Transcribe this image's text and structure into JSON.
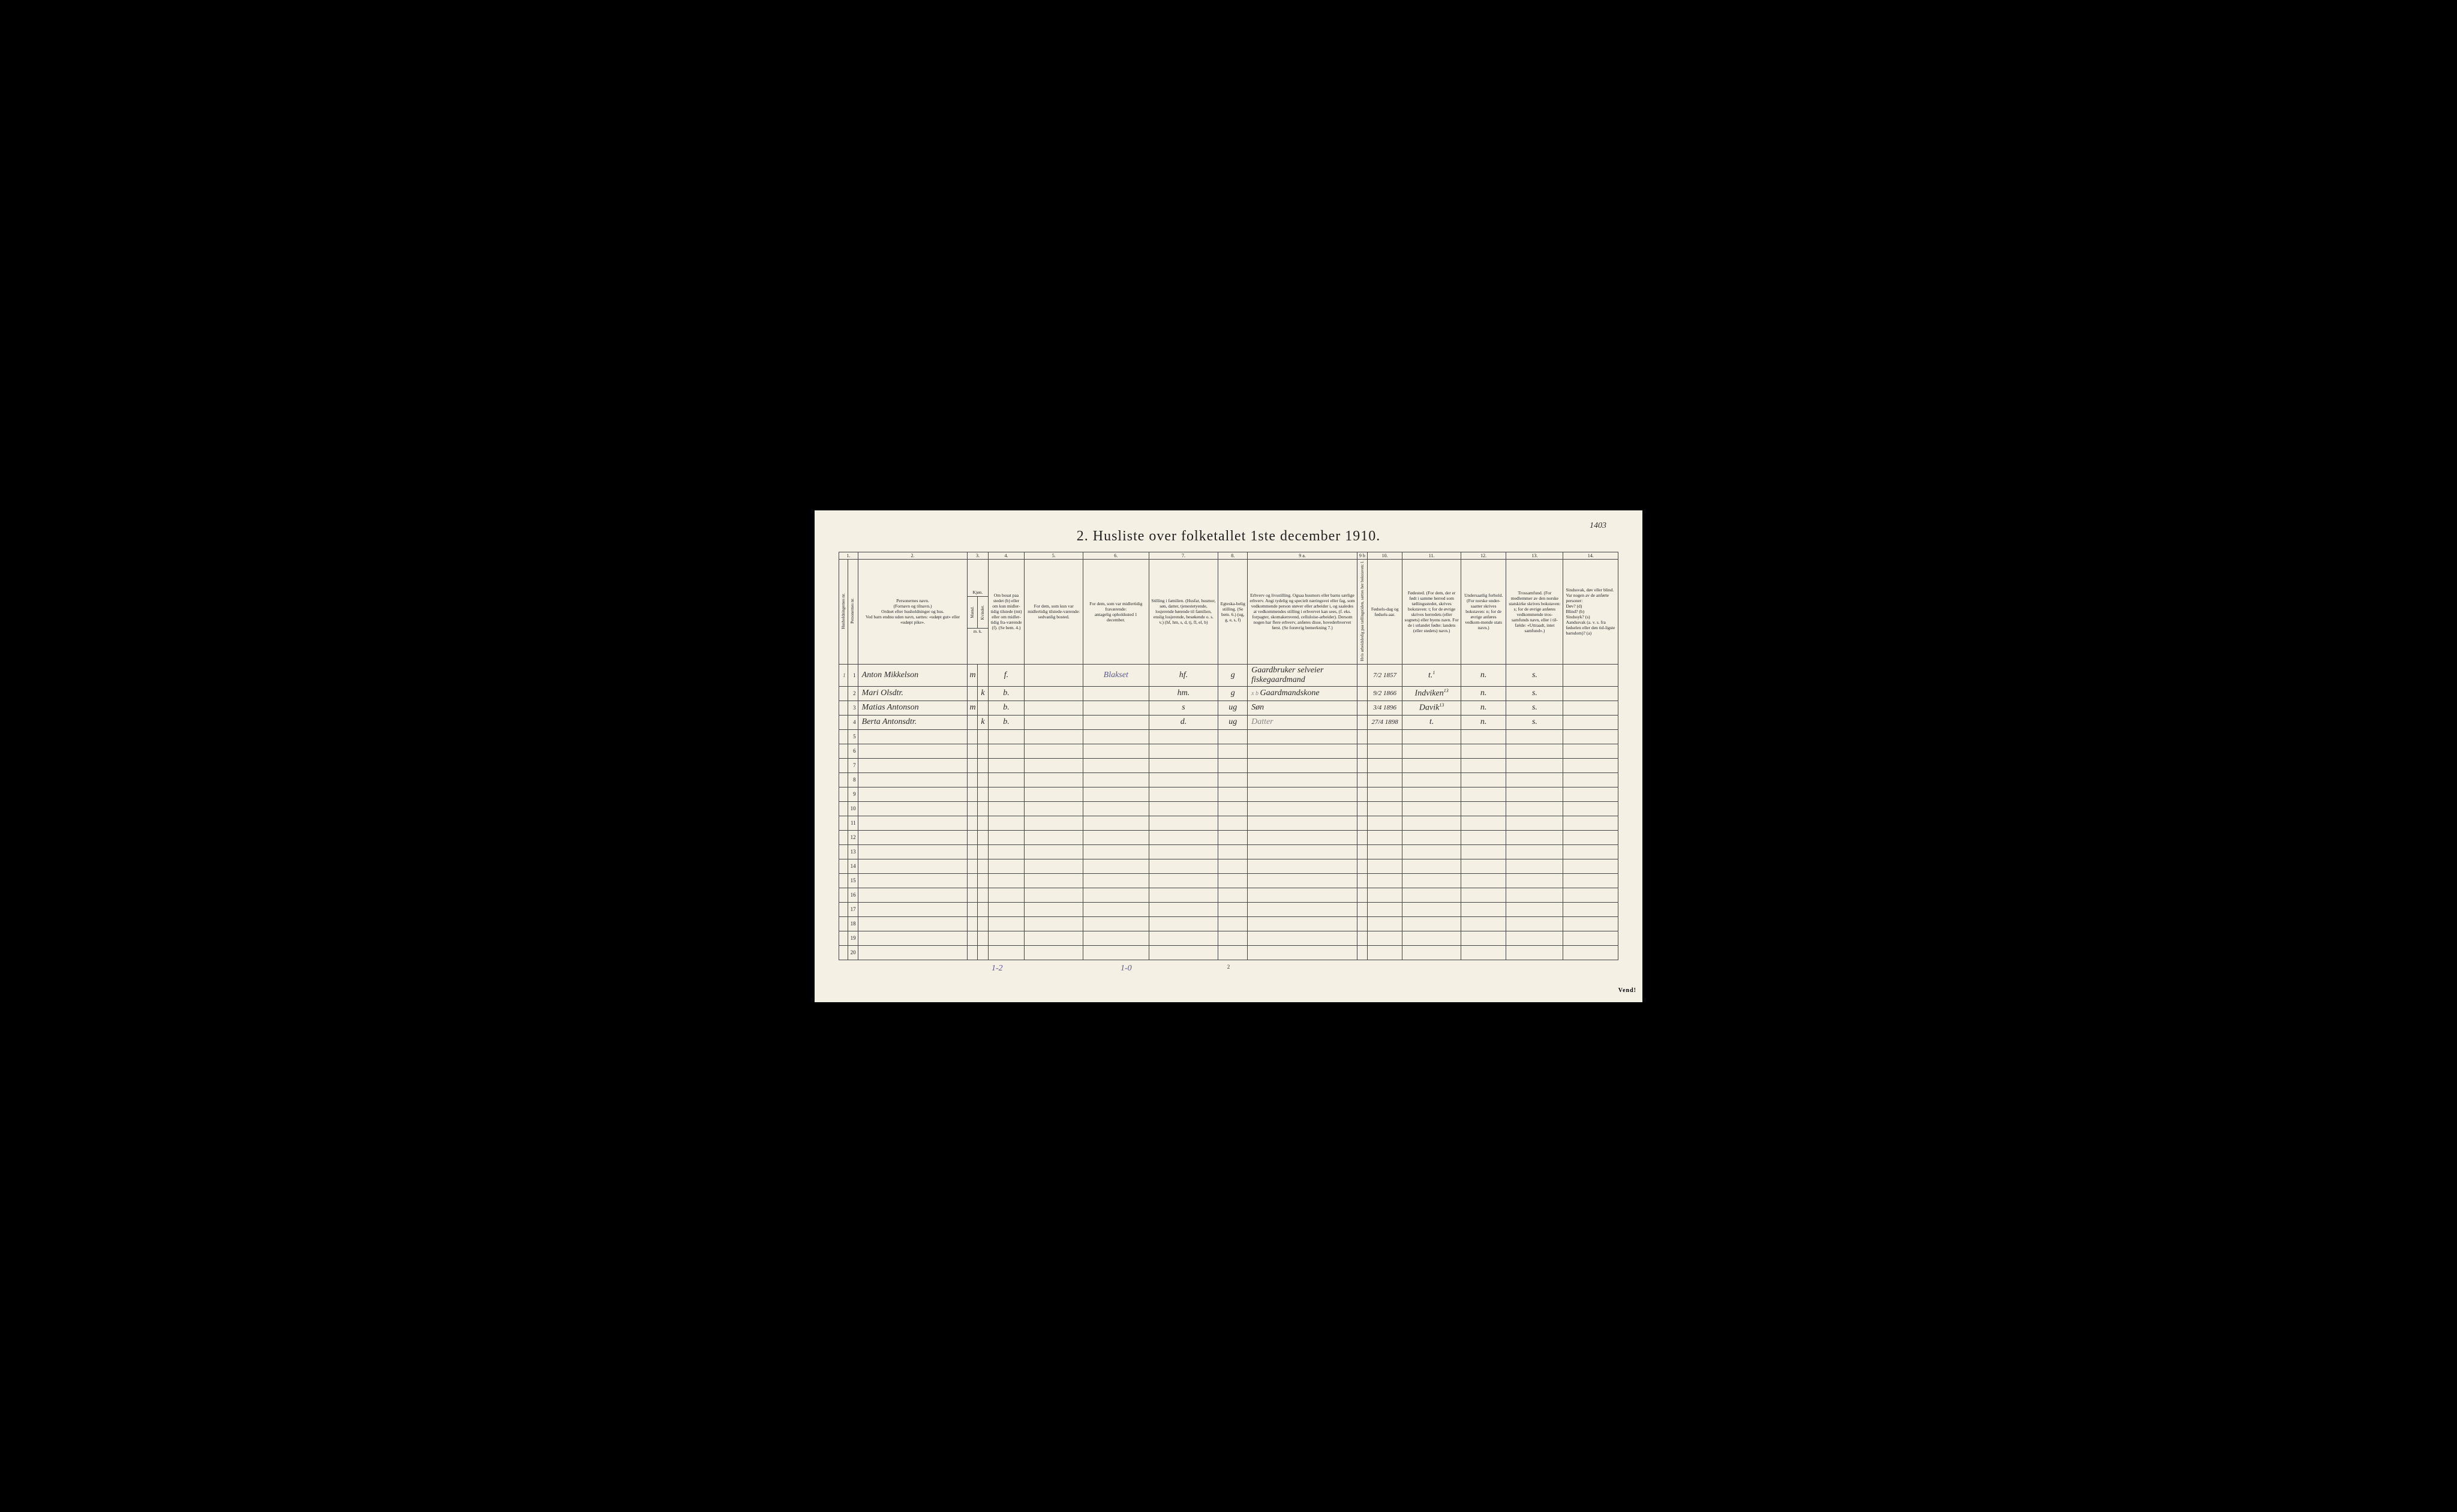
{
  "title": "2.  Husliste over folketallet 1ste december 1910.",
  "page_number_handwritten": "1403",
  "columns_numbers": [
    "1.",
    "2.",
    "3.",
    "4.",
    "5.",
    "6.",
    "7.",
    "8.",
    "9 a.",
    "9 b",
    "10.",
    "11.",
    "12.",
    "13.",
    "14."
  ],
  "headers": {
    "c1a": "Husholdningernes nr.",
    "c1b": "Personernes nr.",
    "c2": "Personernes navn.\n(Fornavn og tilnavn.)\nOrdnet efter husholdninger og hus.\nVed barn endnu uden navn, sættes: «udøpt gut» eller «udøpt pike».",
    "c3": "Kjøn.",
    "c3a": "Mænd.",
    "c3b": "Kvinder.",
    "c3sub": "m.  k.",
    "c4": "Om bosat paa stedet (b) eller om kun midler-tidig tilstede (mt) eller om midler-tidig fra-værende (f). (Se bem. 4.)",
    "c5": "For dem, som kun var midlertidig tilstede-værende:\nsedvanlig bosted.",
    "c6": "For dem, som var midlertidig fraværende:\nantagelig opholdssted 1 december.",
    "c7": "Stilling i familien.\n(Husfar, husmor, søn, datter, tjenestetyende, losjerende hørende til familien, enslig losjerende, besøkende o. s. v.)\n(hf, hm, s, d, tj, fl, el, b)",
    "c8": "Egteska-belig stilling. (Se bem. 6.)\n(ug, g, e, s, f)",
    "c9a": "Erhverv og livsstilling.\nOgsaa husmors eller barns særlige erhverv. Angi tydelig og specielt næringsvei eller fag, som vedkommende person utøver eller arbeider i, og saaledes at vedkommendes stilling i erhvervet kan sees, (f. eks. forpagter, skomakersvend, celluloise-arbeider). Dersom nogen har flere erhverv, anføres disse, hovederhvervet først. (Se forøvrig bemerkning 7.)",
    "c9b": "Hvis arbeidsledig paa tællingstiden, sættes her bokstaven: l.",
    "c10": "Fødsels-dag og fødsels-aar.",
    "c11": "Fødested.\n(For dem, der er født i samme herred som tællingsstedet, skrives bokstaven: t; for de øvrige skrives herredets (eller sognets) eller byens navn. For de i utlandet fødte: landets (eller stedets) navn.)",
    "c12": "Undersaatlig forhold.\n(For norske under-saatter skrives bokstaven: n; for de øvrige anføres vedkom-mende stats navn.)",
    "c13": "Trossamfund.\n(For medlemmer av den norske statskirke skrives bokstaven: s; for de øvrige anføres vedkommende tros-samfunds navn, eller i til-fælde: «Uttraadt, intet samfund».)",
    "c14": "Sindssvak, døv eller blind.\nVar nogen av de anførte personer:\nDøv?       (d)\nBlind?       (b)\nSindssyk? (s)\nAandssvak (a. v. s. fra fødselen eller den tid-ligste barndom)? (a)"
  },
  "rows": [
    {
      "hnum": "1",
      "pnum": "1",
      "name": "Anton Mikkelson",
      "sex_m": "m",
      "sex_k": "",
      "res": "f.",
      "c5": "",
      "c6": "Blakset",
      "c7": "hf.",
      "c8": "g",
      "c9a": "Gaardbruker selveier fiskegaardmand",
      "c10": "7/2 1857",
      "c11": "t.",
      "c12": "n.",
      "c13": "s.",
      "c14": ""
    },
    {
      "hnum": "",
      "pnum": "2",
      "name": "Mari Olsdtr.",
      "sex_m": "",
      "sex_k": "k",
      "res": "b.",
      "c5": "",
      "c6": "",
      "c7": "hm.",
      "c8": "g",
      "c9a": "Gaardmandskone",
      "c9pre": "x b",
      "c10": "9/2 1866",
      "c11": "Indviken",
      "c12": "n.",
      "c13": "s.",
      "c14": ""
    },
    {
      "hnum": "",
      "pnum": "3",
      "name": "Matias Antonson",
      "sex_m": "m",
      "sex_k": "",
      "res": "b.",
      "c5": "",
      "c6": "",
      "c7": "s",
      "c8": "ug",
      "c9a": "Søn",
      "c10": "3/4 1896",
      "c11": "Davik",
      "c12": "n.",
      "c13": "s.",
      "c14": ""
    },
    {
      "hnum": "",
      "pnum": "4",
      "name": "Berta Antonsdtr.",
      "sex_m": "",
      "sex_k": "k",
      "res": "b.",
      "c5": "",
      "c6": "",
      "c7": "d.",
      "c8": "ug",
      "c9a": "Datter",
      "c10": "27/4 1898",
      "c11": "t.",
      "c12": "n.",
      "c13": "s.",
      "c14": ""
    }
  ],
  "empty_rows_to": 20,
  "c11_superscripts": {
    "0": "1",
    "1": "13",
    "2": "13"
  },
  "bottom": {
    "left": "1-2",
    "mid": "1-0",
    "center_page": "2",
    "vend": "Vend!"
  },
  "colors": {
    "paper": "#f4f0e4",
    "ink": "#222222",
    "handwriting": "#2a2a2a",
    "purple_pencil": "#5a5a8a",
    "faint": "#888888",
    "border": "#444444",
    "background": "#000000"
  }
}
